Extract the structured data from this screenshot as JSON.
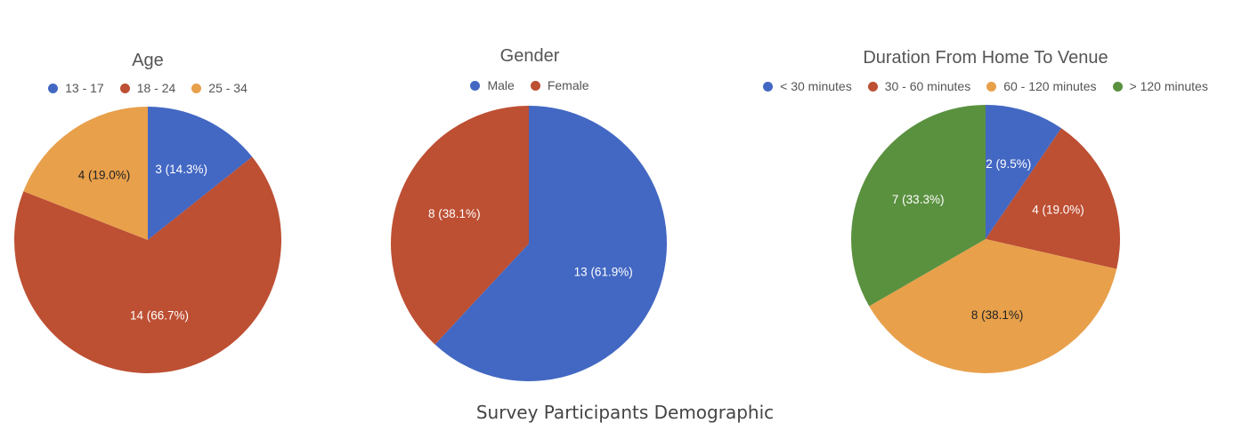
{
  "caption": "Survey Participants Demographic",
  "colors": {
    "blue": "#4368c3",
    "red": "#bd4f33",
    "orange": "#e8a04b",
    "green": "#5a913f"
  },
  "chart_data": [
    {
      "type": "pie",
      "title": "Age",
      "legend_position": "top",
      "slices": [
        {
          "label": "13 - 17",
          "value": 3,
          "percent": 14.3,
          "display": "3 (14.3%)",
          "color": "#4368c3",
          "text_color": "#ffffff"
        },
        {
          "label": "18 - 24",
          "value": 14,
          "percent": 66.7,
          "display": "14 (66.7%)",
          "color": "#bd4f33",
          "text_color": "#ffffff"
        },
        {
          "label": "25 - 34",
          "value": 4,
          "percent": 19.0,
          "display": "4 (19.0%)",
          "color": "#e8a04b",
          "text_color": "#222222"
        }
      ]
    },
    {
      "type": "pie",
      "title": "Gender",
      "legend_position": "top",
      "slices": [
        {
          "label": "Male",
          "value": 13,
          "percent": 61.9,
          "display": "13 (61.9%)",
          "color": "#4368c3",
          "text_color": "#ffffff"
        },
        {
          "label": "Female",
          "value": 8,
          "percent": 38.1,
          "display": "8 (38.1%)",
          "color": "#bd4f33",
          "text_color": "#ffffff"
        }
      ]
    },
    {
      "type": "pie",
      "title": "Duration From Home To Venue",
      "legend_position": "top",
      "slices": [
        {
          "label": "< 30 minutes",
          "value": 2,
          "percent": 9.5,
          "display": "2 (9.5%)",
          "color": "#4368c3",
          "text_color": "#ffffff"
        },
        {
          "label": "30 - 60 minutes",
          "value": 4,
          "percent": 19.0,
          "display": "4 (19.0%)",
          "color": "#bd4f33",
          "text_color": "#ffffff"
        },
        {
          "label": "60 - 120 minutes",
          "value": 8,
          "percent": 38.1,
          "display": "8 (38.1%)",
          "color": "#e8a04b",
          "text_color": "#222222"
        },
        {
          "label": "> 120 minutes",
          "value": 7,
          "percent": 33.3,
          "display": "7 (33.3%)",
          "color": "#5a913f",
          "text_color": "#ffffff"
        }
      ]
    }
  ]
}
